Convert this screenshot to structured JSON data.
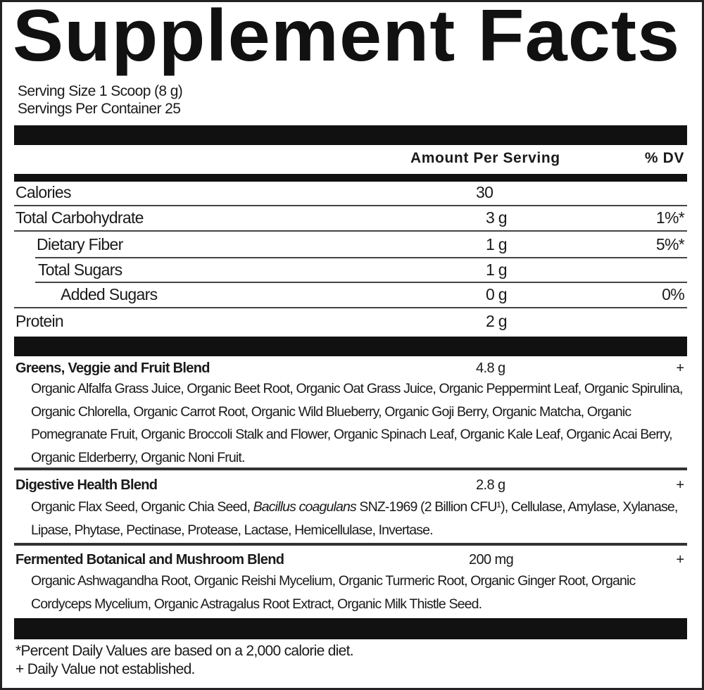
{
  "title": "Supplement Facts",
  "serving_size": "Serving Size 1 Scoop (8 g)",
  "servings_per_container": "Servings Per Container 25",
  "header": {
    "amount": "Amount Per Serving",
    "dv": "% DV"
  },
  "nutrients": [
    {
      "label": "Calories",
      "amount": "30",
      "dv": ""
    },
    {
      "label": "Total Carbohydrate",
      "amount": "3 g",
      "dv": "1%*"
    },
    {
      "label": "Dietary Fiber",
      "amount": "1 g",
      "dv": "5%*"
    },
    {
      "label": "Total Sugars",
      "amount": "1 g",
      "dv": ""
    },
    {
      "label": "Added Sugars",
      "amount": "0 g",
      "dv": "0%"
    },
    {
      "label": "Protein",
      "amount": "2 g",
      "dv": ""
    }
  ],
  "blends": [
    {
      "name": "Greens, Veggie and Fruit Blend",
      "amount": "4.8 g",
      "dv": "+",
      "ingredients": "Organic Alfalfa Grass Juice, Organic Beet Root, Organic Oat Grass Juice, Organic Peppermint Leaf, Organic Spirulina, Organic Chlorella, Organic Carrot Root, Organic Wild Blueberry, Organic Goji Berry, Organic Matcha, Organic Pomegranate Fruit, Organic Broccoli Stalk and Flower, Organic Spinach Leaf, Organic Kale Leaf, Organic Acai Berry, Organic Elderberry, Organic Noni Fruit."
    },
    {
      "name": "Digestive Health Blend",
      "amount": "2.8 g",
      "dv": "+",
      "ingredients_pre": "Organic Flax Seed, Organic Chia Seed, ",
      "ingredients_italic": "Bacillus coagulans",
      "ingredients_post": " SNZ-1969 (2 Billion CFU¹), Cellulase, Amylase, Xylanase, Lipase, Phytase, Pectinase, Protease, Lactase, Hemicellulase, Invertase."
    },
    {
      "name": "Fermented Botanical and Mushroom Blend",
      "amount": "200 mg",
      "dv": "+",
      "ingredients": "Organic Ashwagandha Root, Organic Reishi Mycelium, Organic Turmeric Root, Organic Ginger Root, Organic Cordyceps Mycelium, Organic Astragalus Root Extract, Organic Milk Thistle Seed."
    }
  ],
  "footnotes": [
    "*Percent Daily Values are based on a 2,000 calorie diet.",
    "+ Daily Value not established."
  ]
}
